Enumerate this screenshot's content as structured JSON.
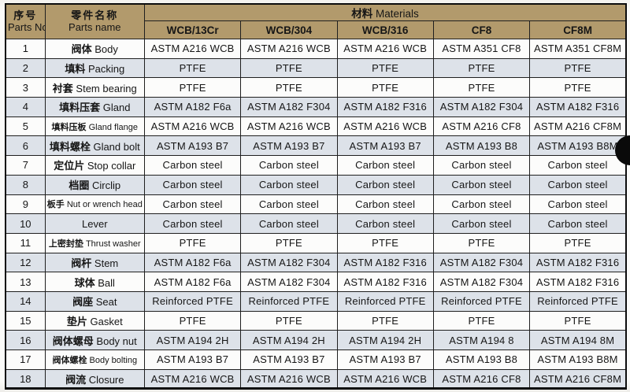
{
  "colors": {
    "header_bg": "#b29a6c",
    "row_alt_bg": "#dde2e9",
    "row_bg": "#fcfcfb",
    "border": "#1f1f1f"
  },
  "table": {
    "header": {
      "parts_no_zh": "序号",
      "parts_no_en": "Parts No.",
      "parts_name_zh": "零件名称",
      "parts_name_en": "Parts name",
      "materials_zh": "材料",
      "materials_en": "Materials",
      "material_columns": [
        "WCB/13Cr",
        "WCB/304",
        "WCB/316",
        "CF8",
        "CF8M"
      ]
    },
    "rows": [
      {
        "no": "1",
        "name_zh": "阀体",
        "name_en": "Body",
        "values": [
          "ASTM A216 WCB",
          "ASTM A216 WCB",
          "ASTM A216 WCB",
          "ASTM A351 CF8",
          "ASTM A351 CF8M"
        ]
      },
      {
        "no": "2",
        "name_zh": "填料",
        "name_en": "Packing",
        "values": [
          "PTFE",
          "PTFE",
          "PTFE",
          "PTFE",
          "PTFE"
        ]
      },
      {
        "no": "3",
        "name_zh": "衬套",
        "name_en": "Stem bearing",
        "values": [
          "PTFE",
          "PTFE",
          "PTFE",
          "PTFE",
          "PTFE"
        ]
      },
      {
        "no": "4",
        "name_zh": "填料压套",
        "name_en": "Gland",
        "values": [
          "ASTM A182 F6a",
          "ASTM A182 F304",
          "ASTM A182 F316",
          "ASTM A182 F304",
          "ASTM A182 F316"
        ]
      },
      {
        "no": "5",
        "name_zh": "填料压板",
        "name_en": "Gland flange",
        "values": [
          "ASTM A216 WCB",
          "ASTM A216 WCB",
          "ASTM A216 WCB",
          "ASTM A216 CF8",
          "ASTM A216 CF8M"
        ]
      },
      {
        "no": "6",
        "name_zh": "填料螺栓",
        "name_en": "Gland bolt",
        "values": [
          "ASTM A193 B7",
          "ASTM A193 B7",
          "ASTM A193 B7",
          "ASTM A193 B8",
          "ASTM A193 B8M"
        ]
      },
      {
        "no": "7",
        "name_zh": "定位片",
        "name_en": "Stop collar",
        "values": [
          "Carbon steel",
          "Carbon steel",
          "Carbon steel",
          "Carbon steel",
          "Carbon steel"
        ]
      },
      {
        "no": "8",
        "name_zh": "档圈",
        "name_en": "Circlip",
        "values": [
          "Carbon steel",
          "Carbon steel",
          "Carbon steel",
          "Carbon steel",
          "Carbon steel"
        ]
      },
      {
        "no": "9",
        "name_zh": "板手",
        "name_en": "Nut or wrench head",
        "values": [
          "Carbon steel",
          "Carbon steel",
          "Carbon steel",
          "Carbon steel",
          "Carbon steel"
        ]
      },
      {
        "no": "10",
        "name_zh": "",
        "name_en": "Lever",
        "values": [
          "Carbon steel",
          "Carbon steel",
          "Carbon steel",
          "Carbon steel",
          "Carbon steel"
        ]
      },
      {
        "no": "11",
        "name_zh": "上密封垫",
        "name_en": "Thrust washer",
        "values": [
          "PTFE",
          "PTFE",
          "PTFE",
          "PTFE",
          "PTFE"
        ]
      },
      {
        "no": "12",
        "name_zh": "阀杆",
        "name_en": "Stem",
        "values": [
          "ASTM A182 F6a",
          "ASTM A182 F304",
          "ASTM A182 F316",
          "ASTM A182 F304",
          "ASTM A182 F316"
        ]
      },
      {
        "no": "13",
        "name_zh": "球体",
        "name_en": "Ball",
        "values": [
          "ASTM A182 F6a",
          "ASTM A182 F304",
          "ASTM A182 F316",
          "ASTM A182 F304",
          "ASTM A182 F316"
        ]
      },
      {
        "no": "14",
        "name_zh": "阀座",
        "name_en": "Seat",
        "values": [
          "Reinforced PTFE",
          "Reinforced PTFE",
          "Reinforced PTFE",
          "Reinforced PTFE",
          "Reinforced PTFE"
        ]
      },
      {
        "no": "15",
        "name_zh": "垫片",
        "name_en": "Gasket",
        "values": [
          "PTFE",
          "PTFE",
          "PTFE",
          "PTFE",
          "PTFE"
        ]
      },
      {
        "no": "16",
        "name_zh": "阀体螺母",
        "name_en": "Body nut",
        "values": [
          "ASTM A194 2H",
          "ASTM A194 2H",
          "ASTM A194 2H",
          "ASTM A194 8",
          "ASTM A194 8M"
        ]
      },
      {
        "no": "17",
        "name_zh": "阀体螺栓",
        "name_en": "Body bolting",
        "values": [
          "ASTM A193 B7",
          "ASTM A193 B7",
          "ASTM A193 B7",
          "ASTM A193 B8",
          "ASTM A193 B8M"
        ]
      },
      {
        "no": "18",
        "name_zh": "阀流",
        "name_en": "Closure",
        "values": [
          "ASTM A216 WCB",
          "ASTM A216 WCB",
          "ASTM A216 WCB",
          "ASTM A216 CF8",
          "ASTM A216 CF8M"
        ]
      }
    ]
  }
}
